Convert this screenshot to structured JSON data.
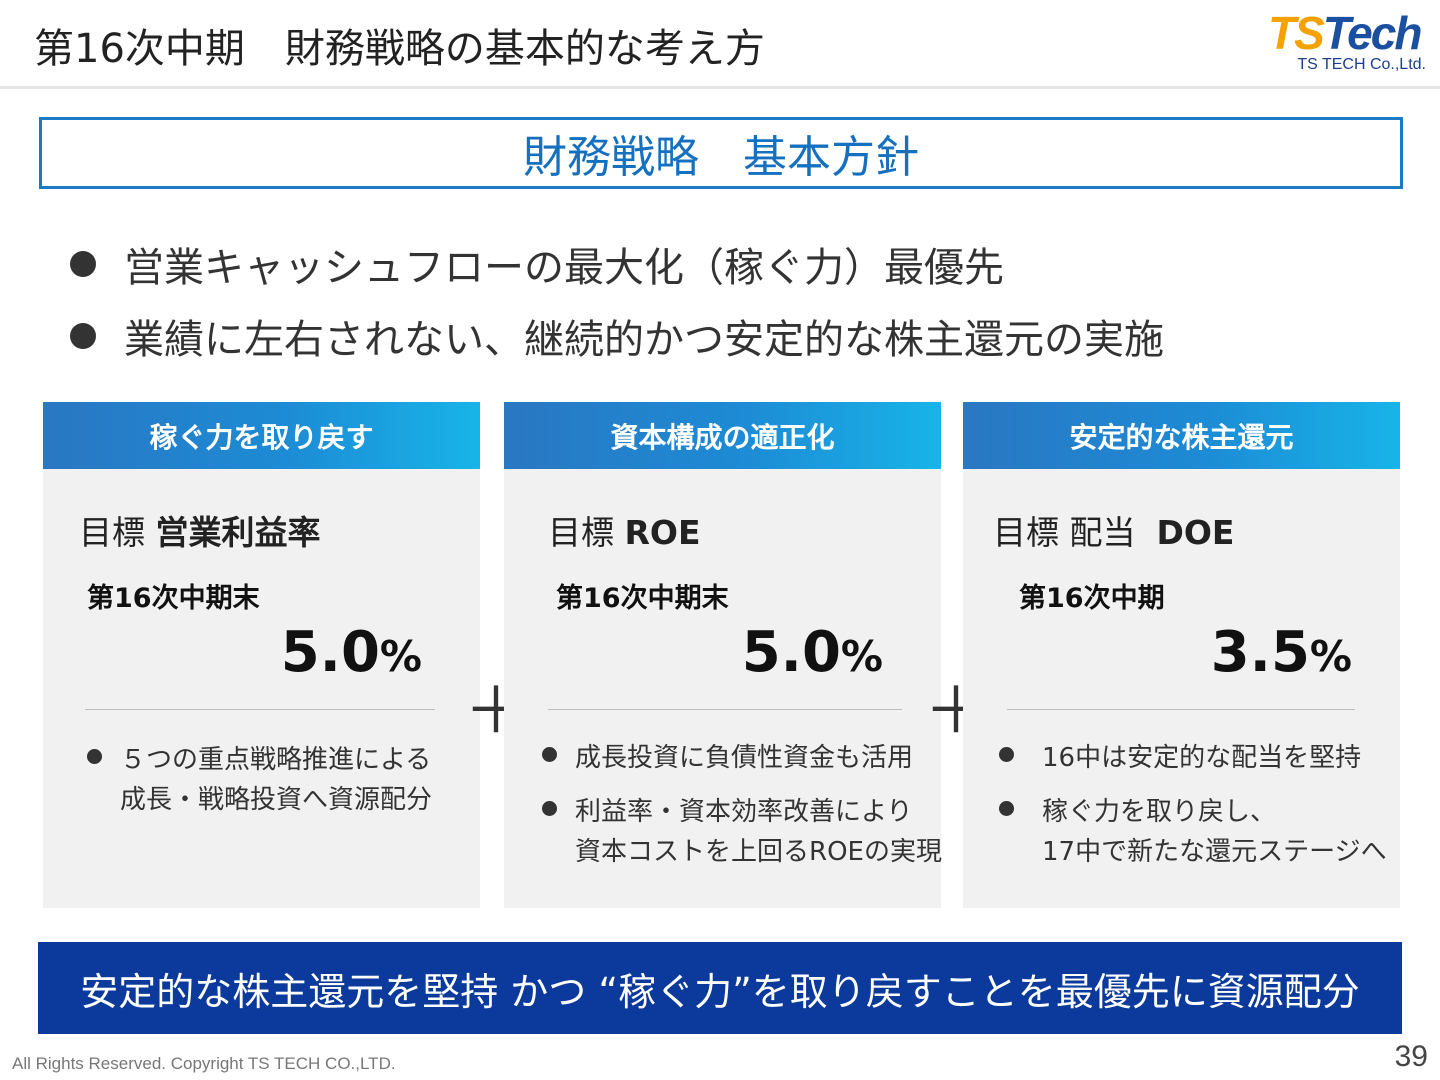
{
  "header": {
    "title": "第16次中期　財務戦略の基本的な考え方",
    "logo_mark_ts": "TS",
    "logo_mark_rest": "Tech",
    "logo_sub": "TS TECH Co.,Ltd."
  },
  "policy_box": {
    "label": "財務戦略　基本方針"
  },
  "bullets": [
    "営業キャッシュフローの最大化（稼ぐ力）最優先",
    "業績に左右されない、継続的かつ安定的な株主還元の実施"
  ],
  "cards": [
    {
      "header": "稼ぐ力を取り戻す",
      "target_prefix": "目標",
      "target_bold": "営業利益率",
      "period": "第16次中期末",
      "value": "5.0",
      "unit": "%",
      "notes": [
        "５つの重点戦略推進による\n成長・戦略投資へ資源配分"
      ]
    },
    {
      "header": "資本構成の適正化",
      "target_prefix": "目標",
      "target_bold": "ROE",
      "period": "第16次中期末",
      "value": "5.0",
      "unit": "%",
      "notes": [
        "成長投資に負債性資金も活用",
        "利益率・資本効率改善により\n資本コストを上回るROEの実現"
      ]
    },
    {
      "header": "安定的な株主還元",
      "target_prefix": "目標 配当",
      "target_bold": "DOE",
      "period": "第16次中期",
      "value": "3.5",
      "unit": "%",
      "notes": [
        "16中は安定的な配当を堅持",
        "稼ぐ力を取り戻し、\n17中で新たな還元ステージへ"
      ]
    }
  ],
  "plus_signs": [
    "＋",
    "＋"
  ],
  "banner": {
    "text": "安定的な株主還元を堅持 かつ “稼ぐ力”を取り戻すことを最優先に資源配分"
  },
  "footer": {
    "copyright": "All Rights Reserved. Copyright TS TECH CO.,LTD.",
    "page_number": "39"
  },
  "colors": {
    "policy_border": "#1a7ac6",
    "card_header_gradient_start": "#2a77c2",
    "card_header_gradient_end": "#18b4e8",
    "banner_bg": "#0b3a9c",
    "card_bg": "#f1f1f1"
  }
}
